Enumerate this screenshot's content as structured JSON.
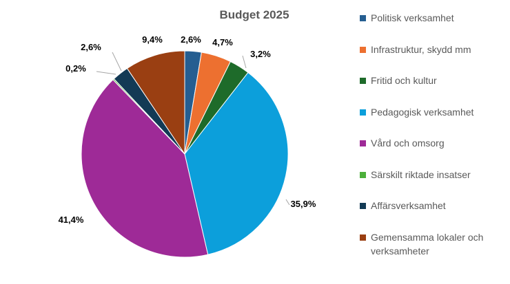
{
  "chart_data": {
    "type": "pie",
    "title": "Budget 2025",
    "legend_position": "right",
    "slices": [
      {
        "name": "Politisk verksamhet",
        "value": 2.6,
        "label": "2,6%",
        "color": "#255E91"
      },
      {
        "name": "Infrastruktur, skydd mm",
        "value": 4.7,
        "label": "4,7%",
        "color": "#ED7030"
      },
      {
        "name": "Fritid och kultur",
        "value": 3.2,
        "label": "3,2%",
        "color": "#1E6B2A"
      },
      {
        "name": "Pedagogisk verksamhet",
        "value": 35.9,
        "label": "35,9%",
        "color": "#0C9FDB"
      },
      {
        "name": "Vård och omsorg",
        "value": 41.4,
        "label": "41,4%",
        "color": "#9E2A97"
      },
      {
        "name": "Särskilt riktade insatser",
        "value": 0.2,
        "label": "0,2%",
        "color": "#4CAF3A"
      },
      {
        "name": "Affärsverksamhet",
        "value": 2.6,
        "label": "2,6%",
        "color": "#133A55"
      },
      {
        "name": "Gemensamma lokaler och verksamheter",
        "value": 9.4,
        "label": "9,4%",
        "color": "#9A3F12"
      }
    ]
  }
}
